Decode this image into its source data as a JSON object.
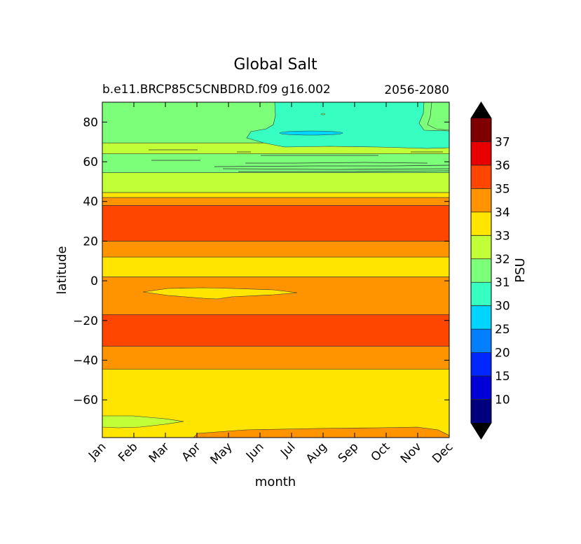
{
  "chart_data": {
    "type": "heatmap",
    "title": "Global Salt",
    "subtitle_left": "b.e11.BRCP85C5CNBDRD.f09 g16.002",
    "subtitle_right": "2056-2080",
    "xlabel": "month",
    "ylabel": "latitude",
    "x_categories": [
      "Jan",
      "Feb",
      "Mar",
      "Apr",
      "May",
      "Jun",
      "Jul",
      "Aug",
      "Sep",
      "Oct",
      "Nov",
      "Dec"
    ],
    "y_ticks": [
      80,
      60,
      40,
      20,
      0,
      -20,
      -40,
      -60
    ],
    "ylim": [
      -79,
      90
    ],
    "grid": false,
    "colorbar": {
      "label": "PSU",
      "tick_labels": [
        "10",
        "15",
        "20",
        "25",
        "30",
        "31",
        "32",
        "33",
        "34",
        "35",
        "36",
        "37"
      ],
      "levels": [
        {
          "color": "#00007f"
        },
        {
          "color": "#0000d7"
        },
        {
          "color": "#0027ff"
        },
        {
          "color": "#0080ff"
        },
        {
          "color": "#00d4ff"
        },
        {
          "color": "#36ffc1"
        },
        {
          "color": "#7cff79"
        },
        {
          "color": "#c1ff36"
        },
        {
          "color": "#ffe500"
        },
        {
          "color": "#ff9400"
        },
        {
          "color": "#ff4600"
        },
        {
          "color": "#e80000"
        },
        {
          "color": "#7f0000"
        }
      ],
      "extend_low_color": "#000000",
      "extend_high_color": "#000000"
    },
    "bands": [
      {
        "range_psu": "33-34",
        "lat_top": -44.5,
        "lat_bottom": -79
      },
      {
        "range_psu": "34-35",
        "lat_top": -33,
        "lat_bottom": -44.5
      },
      {
        "range_psu": "35-36",
        "lat_top": -17,
        "lat_bottom": -33
      },
      {
        "range_psu": "34-35",
        "lat_top": 2,
        "lat_bottom": -17
      },
      {
        "range_psu": "33-34",
        "lat_top": 12,
        "lat_bottom": 2
      },
      {
        "range_psu": "34-35",
        "lat_top": 20,
        "lat_bottom": 12
      },
      {
        "range_psu": "35-36",
        "lat_top": 38,
        "lat_bottom": 20
      },
      {
        "range_psu": "34-35",
        "lat_top": 42,
        "lat_bottom": 38
      },
      {
        "range_psu": "33-34",
        "lat_top": 44.5,
        "lat_bottom": 42
      },
      {
        "range_psu": "32-33",
        "lat_top": 54.5,
        "lat_bottom": 44.5
      },
      {
        "range_psu": "31-32",
        "lat_top": 64,
        "lat_bottom": 54.5
      },
      {
        "range_psu": "32-33",
        "lat_top": 69.5,
        "lat_bottom": 64
      },
      {
        "range_psu": "31-32",
        "lat_top": 90,
        "lat_bottom": 69.5
      }
    ]
  }
}
